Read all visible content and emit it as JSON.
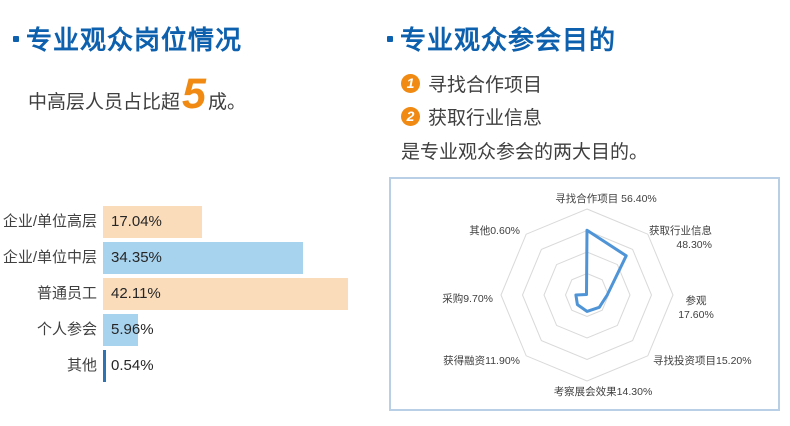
{
  "left_section": {
    "title": "专业观众岗位情况",
    "subtitle_prefix": "中高层人员占比超",
    "subtitle_number": "5",
    "subtitle_suffix": "成。"
  },
  "right_section": {
    "title": "专业观众参会目的",
    "list": [
      {
        "num": "1",
        "label": "寻找合作项目"
      },
      {
        "num": "2",
        "label": "获取行业信息"
      }
    ],
    "conclusion": "是专业观众参会的两大目的。"
  },
  "colors": {
    "title_blue": "#0d60ad",
    "accent_orange": "#f08a12",
    "bar_peach": "#fadcbb",
    "bar_light_blue": "#a8d3ee",
    "bar_dark_blue": "#2e74b5",
    "radar_line": "#4e94d6",
    "radar_grid": "#d9d9d9",
    "radar_box_border": "#b9cfe6",
    "body_text": "#3f3f3f"
  },
  "chart_data": [
    {
      "type": "bar",
      "orientation": "horizontal",
      "title": "专业观众岗位情况",
      "categories": [
        "企业/单位高层",
        "企业/单位中层",
        "普通员工",
        "个人参会",
        "其他"
      ],
      "values": [
        17.04,
        34.35,
        42.11,
        5.96,
        0.54
      ],
      "value_labels": [
        "17.04%",
        "34.35%",
        "42.11%",
        "5.96%",
        "0.54%"
      ],
      "bar_colors": [
        "#fadcbb",
        "#a8d3ee",
        "#fadcbb",
        "#a8d3ee",
        "#2e74b5"
      ],
      "xlim": [
        0,
        42.11
      ],
      "grid": "off",
      "legend": "none"
    },
    {
      "type": "radar",
      "title": "专业观众参会目的",
      "categories": [
        "寻找合作项目",
        "获取行业信息",
        "参观",
        "寻找投资项目",
        "考察展会效果",
        "获得融资",
        "采购",
        "其他"
      ],
      "values": [
        56.4,
        48.3,
        17.6,
        15.2,
        14.3,
        11.9,
        9.7,
        0.6
      ],
      "display_labels": [
        [
          "寻找合作项目 56.40%"
        ],
        [
          "获取行业信息",
          "48.30%"
        ],
        [
          "参观",
          "17.60%"
        ],
        [
          "寻找投资项目15.20%"
        ],
        [
          "考察展会效果14.30%"
        ],
        [
          "获得融资11.90%"
        ],
        [
          "采购9.70%"
        ],
        [
          "其他0.60%"
        ]
      ],
      "rmax": 75,
      "rings": 4,
      "grid": "concentric-octagons-no-spokes",
      "fill": "none",
      "legend": "none"
    }
  ]
}
